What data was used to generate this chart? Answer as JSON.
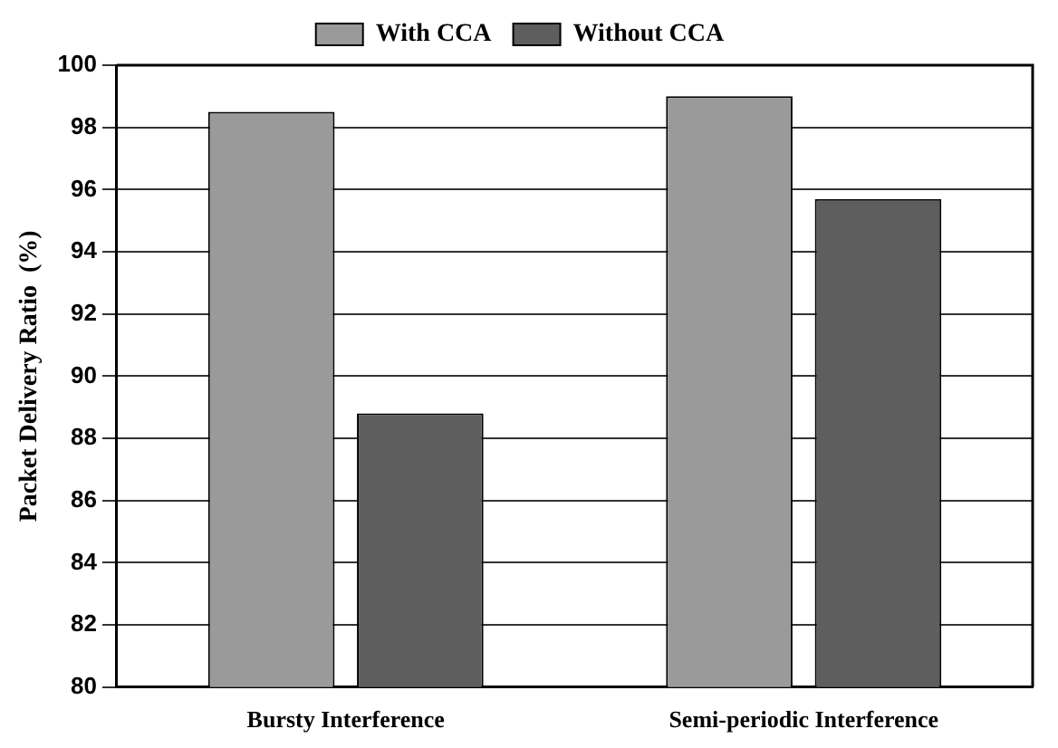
{
  "chart_data": {
    "type": "bar",
    "ylabel": "Packet Delivery Ratio  (%)",
    "categories": [
      "Bursty Interference",
      "Semi-periodic Interference"
    ],
    "series": [
      {
        "name": "With CCA",
        "color": "#9a9a9a",
        "values": [
          98.5,
          99.0
        ]
      },
      {
        "name": "Without CCA",
        "color": "#5e5e5e",
        "values": [
          88.8,
          95.7
        ]
      }
    ],
    "ylim": [
      80,
      100
    ],
    "yticks": [
      80,
      82,
      84,
      86,
      88,
      90,
      92,
      94,
      96,
      98,
      100
    ],
    "grid": "y",
    "legend": "top"
  }
}
